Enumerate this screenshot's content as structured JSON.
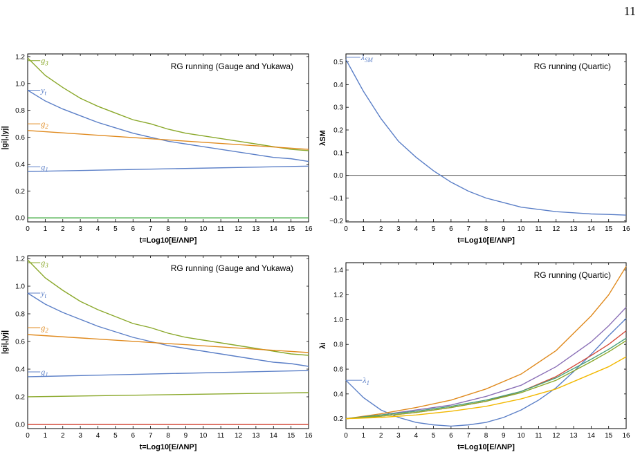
{
  "page": {
    "number": "11"
  },
  "colors": {
    "blue": "#5b7fc7",
    "orange": "#e08a1e",
    "green": "#8aa82a",
    "red": "#d44a3a",
    "purple": "#8a6fb6",
    "teal": "#4aa07a",
    "yellow": "#f2b800",
    "brightgreen": "#3caa3c",
    "zero": "#555555"
  },
  "chart_data": [
    {
      "type": "line",
      "annotation": "RG running (Gauge and Yukawa)",
      "xlabel": "t=Log10[E/ΛNP]",
      "ylabel": "|gi|,|yj|",
      "xlim": [
        0,
        16
      ],
      "ylim": [
        -0.03,
        1.22
      ],
      "xticks": [
        0,
        1,
        2,
        3,
        4,
        5,
        6,
        7,
        8,
        9,
        10,
        11,
        12,
        13,
        14,
        15,
        16
      ],
      "yticks": [
        0.0,
        0.2,
        0.4,
        0.6,
        0.8,
        1.0,
        1.2
      ],
      "yticklabels": [
        "0.0",
        "0.2",
        "0.4",
        "0.6",
        "0.8",
        "1.0",
        "1.2"
      ],
      "series": [
        {
          "name": "g3",
          "color": "green",
          "x": [
            0,
            1,
            2,
            3,
            4,
            5,
            6,
            7,
            8,
            9,
            10,
            11,
            12,
            13,
            14,
            15,
            16
          ],
          "y": [
            1.19,
            1.06,
            0.97,
            0.89,
            0.83,
            0.78,
            0.73,
            0.7,
            0.66,
            0.63,
            0.61,
            0.59,
            0.57,
            0.55,
            0.53,
            0.51,
            0.5
          ]
        },
        {
          "name": "yt",
          "color": "blue",
          "x": [
            0,
            1,
            2,
            3,
            4,
            5,
            6,
            7,
            8,
            9,
            10,
            11,
            12,
            13,
            14,
            15,
            16
          ],
          "y": [
            0.95,
            0.87,
            0.81,
            0.76,
            0.71,
            0.67,
            0.63,
            0.6,
            0.57,
            0.55,
            0.53,
            0.51,
            0.49,
            0.47,
            0.45,
            0.44,
            0.42
          ]
        },
        {
          "name": "g2",
          "color": "orange",
          "x": [
            0,
            16
          ],
          "y": [
            0.65,
            0.51
          ]
        },
        {
          "name": "g1",
          "color": "blue",
          "x": [
            0,
            16
          ],
          "y": [
            0.345,
            0.385
          ]
        },
        {
          "color": "brightgreen",
          "x": [
            0,
            16
          ],
          "y": [
            0.0,
            0.0
          ]
        }
      ],
      "labels": [
        {
          "series": "g3",
          "text": "g",
          "sub": "3",
          "x": 0.6,
          "y": 1.17
        },
        {
          "series": "yt",
          "text": "y",
          "sub": "t",
          "x": 0.6,
          "y": 0.95
        },
        {
          "series": "g2",
          "text": "g",
          "sub": "2",
          "x": 0.6,
          "y": 0.7
        },
        {
          "series": "g1",
          "text": "g",
          "sub": "1",
          "x": 0.6,
          "y": 0.38
        }
      ]
    },
    {
      "type": "line",
      "annotation": "RG running (Quartic)",
      "xlabel": "t=Log10[E/ΛNP]",
      "ylabel": "λSM",
      "xlim": [
        0,
        16
      ],
      "ylim": [
        -0.205,
        0.535
      ],
      "xticks": [
        0,
        1,
        2,
        3,
        4,
        5,
        6,
        7,
        8,
        9,
        10,
        11,
        12,
        13,
        14,
        15,
        16
      ],
      "yticks": [
        0.5,
        0.4,
        0.3,
        0.2,
        0.1,
        0.0,
        -0.1,
        -0.2
      ],
      "yticklabels": [
        "0.5",
        "0.4",
        "0.3",
        "0.2",
        "0.1",
        "0.0",
        "−0.1",
        "−0.2"
      ],
      "zero_line": true,
      "series": [
        {
          "name": "λSM",
          "color": "blue",
          "x": [
            0,
            1,
            2,
            3,
            4,
            5,
            6,
            7,
            8,
            9,
            10,
            11,
            12,
            13,
            14,
            15,
            16
          ],
          "y": [
            0.51,
            0.37,
            0.25,
            0.15,
            0.08,
            0.02,
            -0.03,
            -0.07,
            -0.1,
            -0.12,
            -0.14,
            -0.15,
            -0.16,
            -0.165,
            -0.17,
            -0.172,
            -0.175
          ]
        }
      ],
      "labels": [
        {
          "series": "λSM",
          "text": "λ",
          "sub": "SM",
          "x": 0.7,
          "y": 0.52
        }
      ]
    },
    {
      "type": "line",
      "annotation": "RG running (Gauge and Yukawa)",
      "xlabel": "t=Log10[E/ΛNP]",
      "ylabel": "|gi|,|yj|",
      "xlim": [
        0,
        16
      ],
      "ylim": [
        -0.03,
        1.22
      ],
      "xticks": [
        0,
        1,
        2,
        3,
        4,
        5,
        6,
        7,
        8,
        9,
        10,
        11,
        12,
        13,
        14,
        15,
        16
      ],
      "yticks": [
        0.0,
        0.2,
        0.4,
        0.6,
        0.8,
        1.0,
        1.2
      ],
      "yticklabels": [
        "0.0",
        "0.2",
        "0.4",
        "0.6",
        "0.8",
        "1.0",
        "1.2"
      ],
      "series": [
        {
          "name": "g3",
          "color": "green",
          "x": [
            0,
            1,
            2,
            3,
            4,
            5,
            6,
            7,
            8,
            9,
            10,
            11,
            12,
            13,
            14,
            15,
            16
          ],
          "y": [
            1.19,
            1.06,
            0.97,
            0.89,
            0.83,
            0.78,
            0.73,
            0.7,
            0.66,
            0.63,
            0.61,
            0.59,
            0.57,
            0.55,
            0.53,
            0.51,
            0.5
          ]
        },
        {
          "name": "yt",
          "color": "blue",
          "x": [
            0,
            1,
            2,
            3,
            4,
            5,
            6,
            7,
            8,
            9,
            10,
            11,
            12,
            13,
            14,
            15,
            16
          ],
          "y": [
            0.95,
            0.87,
            0.81,
            0.76,
            0.71,
            0.67,
            0.63,
            0.6,
            0.57,
            0.55,
            0.53,
            0.51,
            0.49,
            0.47,
            0.45,
            0.44,
            0.42
          ]
        },
        {
          "name": "g2",
          "color": "orange",
          "x": [
            0,
            16
          ],
          "y": [
            0.65,
            0.52
          ]
        },
        {
          "name": "g1",
          "color": "blue",
          "x": [
            0,
            16
          ],
          "y": [
            0.345,
            0.39
          ]
        },
        {
          "color": "green",
          "x": [
            0,
            16
          ],
          "y": [
            0.2,
            0.23
          ]
        },
        {
          "color": "red",
          "x": [
            0,
            16
          ],
          "y": [
            0.0,
            0.0
          ]
        }
      ],
      "labels": [
        {
          "series": "g3",
          "text": "g",
          "sub": "3",
          "x": 0.6,
          "y": 1.17
        },
        {
          "series": "yt",
          "text": "y",
          "sub": "t",
          "x": 0.6,
          "y": 0.95
        },
        {
          "series": "g2",
          "text": "g",
          "sub": "2",
          "x": 0.6,
          "y": 0.7
        },
        {
          "series": "g1",
          "text": "g",
          "sub": "1",
          "x": 0.6,
          "y": 0.38
        }
      ]
    },
    {
      "type": "line",
      "annotation": "RG running (Quartic)",
      "xlabel": "t=Log10[E/ΛNP]",
      "ylabel": "λi",
      "xlim": [
        0,
        16
      ],
      "ylim": [
        0.12,
        1.46
      ],
      "xticks": [
        0,
        1,
        2,
        3,
        4,
        5,
        6,
        7,
        8,
        9,
        10,
        11,
        12,
        13,
        14,
        15,
        16
      ],
      "yticks": [
        0.2,
        0.4,
        0.6,
        0.8,
        1.0,
        1.2,
        1.4
      ],
      "yticklabels": [
        "0.2",
        "0.4",
        "0.6",
        "0.8",
        "1.0",
        "1.2",
        "1.4"
      ],
      "series": [
        {
          "name": "λ1",
          "color": "blue",
          "x": [
            0,
            1,
            2,
            3,
            4,
            5,
            6,
            7,
            8,
            9,
            10,
            11,
            12,
            13,
            14,
            15,
            16
          ],
          "y": [
            0.51,
            0.37,
            0.27,
            0.21,
            0.17,
            0.15,
            0.14,
            0.15,
            0.17,
            0.21,
            0.27,
            0.35,
            0.45,
            0.58,
            0.72,
            0.87,
            1.01
          ]
        },
        {
          "color": "orange",
          "x": [
            0,
            2,
            4,
            6,
            8,
            10,
            12,
            14,
            15,
            16
          ],
          "y": [
            0.2,
            0.24,
            0.29,
            0.35,
            0.44,
            0.56,
            0.75,
            1.03,
            1.2,
            1.43
          ]
        },
        {
          "color": "purple",
          "x": [
            0,
            2,
            4,
            6,
            8,
            10,
            12,
            14,
            15,
            16
          ],
          "y": [
            0.2,
            0.23,
            0.27,
            0.31,
            0.38,
            0.47,
            0.62,
            0.82,
            0.95,
            1.1
          ]
        },
        {
          "color": "red",
          "x": [
            0,
            2,
            4,
            6,
            8,
            10,
            12,
            14,
            15,
            16
          ],
          "y": [
            0.2,
            0.22,
            0.25,
            0.29,
            0.34,
            0.42,
            0.54,
            0.71,
            0.8,
            0.91
          ]
        },
        {
          "color": "teal",
          "x": [
            0,
            2,
            4,
            6,
            8,
            10,
            12,
            14,
            15,
            16
          ],
          "y": [
            0.2,
            0.23,
            0.26,
            0.3,
            0.35,
            0.42,
            0.53,
            0.68,
            0.76,
            0.85
          ]
        },
        {
          "color": "green",
          "x": [
            0,
            2,
            4,
            6,
            8,
            10,
            12,
            14,
            15,
            16
          ],
          "y": [
            0.2,
            0.22,
            0.25,
            0.29,
            0.34,
            0.41,
            0.51,
            0.66,
            0.74,
            0.83
          ]
        },
        {
          "color": "yellow",
          "x": [
            0,
            2,
            4,
            6,
            8,
            10,
            12,
            14,
            15,
            16
          ],
          "y": [
            0.2,
            0.21,
            0.23,
            0.26,
            0.3,
            0.36,
            0.44,
            0.56,
            0.62,
            0.7
          ]
        }
      ],
      "labels": [
        {
          "series": "λ1",
          "text": "λ",
          "sub": "1",
          "x": 0.8,
          "y": 0.51
        }
      ]
    }
  ]
}
